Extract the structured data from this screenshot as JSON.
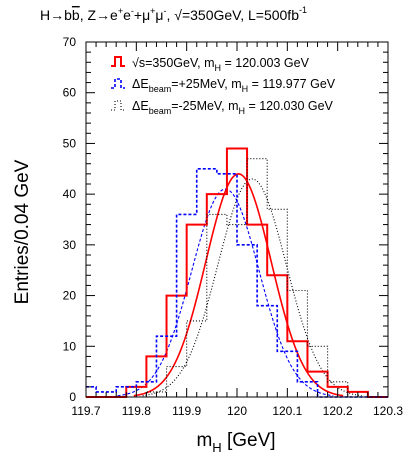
{
  "chart_data": {
    "type": "line",
    "title": {
      "pre": "H→b",
      "b": "b",
      "mid": ", Z→e",
      "plus1": "+",
      "e2": "e",
      "minus1": "-",
      "plus": "+μ",
      "plus2": "+",
      "mu2": "μ",
      "minus2": "-",
      "rest": ", √=350GeV, L=500fb",
      "sup": "-1"
    },
    "xlabel": {
      "main": "m",
      "sub": "H",
      "unit": " [GeV]"
    },
    "ylabel": "Entries/0.04 GeV",
    "xlim": [
      119.7,
      120.3
    ],
    "ylim": [
      0,
      70
    ],
    "x_ticks": [
      {
        "v": 119.7,
        "label": "119.7"
      },
      {
        "v": 119.8,
        "label": "119.8"
      },
      {
        "v": 119.9,
        "label": "119.9"
      },
      {
        "v": 120.0,
        "label": "120"
      },
      {
        "v": 120.1,
        "label": "120.1"
      },
      {
        "v": 120.2,
        "label": "120.2"
      },
      {
        "v": 120.3,
        "label": "120.3"
      }
    ],
    "y_ticks": [
      {
        "v": 0,
        "label": "0"
      },
      {
        "v": 10,
        "label": "10"
      },
      {
        "v": 20,
        "label": "20"
      },
      {
        "v": 30,
        "label": "30"
      },
      {
        "v": 40,
        "label": "40"
      },
      {
        "v": 50,
        "label": "50"
      },
      {
        "v": 60,
        "label": "60"
      },
      {
        "v": 70,
        "label": "70"
      }
    ],
    "series": [
      {
        "name": "√s=350GeV, m_H = 120.003 GeV",
        "legend": {
          "a": "√s=350GeV, m",
          "sub": "H",
          "b": " = 120.003 GeV"
        },
        "color": "#ff0000",
        "dash": "",
        "width": 2,
        "bins": [
          {
            "lo": 119.7,
            "hi": 119.78,
            "y": 0
          },
          {
            "lo": 119.78,
            "hi": 119.82,
            "y": 2
          },
          {
            "lo": 119.82,
            "hi": 119.86,
            "y": 8
          },
          {
            "lo": 119.86,
            "hi": 119.9,
            "y": 20
          },
          {
            "lo": 119.9,
            "hi": 119.94,
            "y": 34
          },
          {
            "lo": 119.94,
            "hi": 119.98,
            "y": 40
          },
          {
            "lo": 119.98,
            "hi": 120.02,
            "y": 49
          },
          {
            "lo": 120.02,
            "hi": 120.06,
            "y": 34
          },
          {
            "lo": 120.06,
            "hi": 120.1,
            "y": 24
          },
          {
            "lo": 120.1,
            "hi": 120.14,
            "y": 11
          },
          {
            "lo": 120.14,
            "hi": 120.18,
            "y": 5
          },
          {
            "lo": 120.18,
            "hi": 120.22,
            "y": 2
          },
          {
            "lo": 120.22,
            "hi": 120.26,
            "y": 1
          },
          {
            "lo": 120.26,
            "hi": 120.3,
            "y": 0
          }
        ],
        "fit": {
          "mean": 120.003,
          "sigma": 0.065,
          "amp": 44
        }
      },
      {
        "name": "ΔE_beam=+25MeV, m_H = 119.977 GeV",
        "legend": {
          "a": "ΔE",
          "sub1": "beam",
          "b": "=+25MeV, m",
          "sub2": "H",
          "c": " = 119.977 GeV"
        },
        "color": "#0000ff",
        "dash": "3,2",
        "width": 1.6,
        "bins": [
          {
            "lo": 119.7,
            "hi": 119.72,
            "y": 2
          },
          {
            "lo": 119.72,
            "hi": 119.76,
            "y": 1
          },
          {
            "lo": 119.76,
            "hi": 119.8,
            "y": 2
          },
          {
            "lo": 119.8,
            "hi": 119.84,
            "y": 3
          },
          {
            "lo": 119.84,
            "hi": 119.88,
            "y": 12
          },
          {
            "lo": 119.88,
            "hi": 119.92,
            "y": 36
          },
          {
            "lo": 119.92,
            "hi": 119.96,
            "y": 45
          },
          {
            "lo": 119.96,
            "hi": 120.0,
            "y": 44
          },
          {
            "lo": 120.0,
            "hi": 120.04,
            "y": 30
          },
          {
            "lo": 120.04,
            "hi": 120.08,
            "y": 18
          },
          {
            "lo": 120.08,
            "hi": 120.12,
            "y": 9
          },
          {
            "lo": 120.12,
            "hi": 120.16,
            "y": 3
          },
          {
            "lo": 120.16,
            "hi": 120.3,
            "y": 0
          }
        ],
        "fit": {
          "mean": 119.977,
          "sigma": 0.067,
          "amp": 41
        }
      },
      {
        "name": "ΔE_beam=-25MeV, m_H = 120.030 GeV",
        "legend": {
          "a": "ΔE",
          "sub1": "beam",
          "b": "=-25MeV, m",
          "sub2": "H",
          "c": " = 120.030 GeV"
        },
        "color": "#000000",
        "dash": "1,2",
        "width": 1.1,
        "bins": [
          {
            "lo": 119.7,
            "hi": 119.82,
            "y": 0
          },
          {
            "lo": 119.82,
            "hi": 119.86,
            "y": 1
          },
          {
            "lo": 119.86,
            "hi": 119.9,
            "y": 6
          },
          {
            "lo": 119.9,
            "hi": 119.94,
            "y": 15
          },
          {
            "lo": 119.94,
            "hi": 119.98,
            "y": 36
          },
          {
            "lo": 119.98,
            "hi": 120.02,
            "y": 34
          },
          {
            "lo": 120.02,
            "hi": 120.06,
            "y": 47
          },
          {
            "lo": 120.06,
            "hi": 120.1,
            "y": 37
          },
          {
            "lo": 120.1,
            "hi": 120.14,
            "y": 21
          },
          {
            "lo": 120.14,
            "hi": 120.18,
            "y": 10
          },
          {
            "lo": 120.18,
            "hi": 120.22,
            "y": 3
          },
          {
            "lo": 120.22,
            "hi": 120.3,
            "y": 0
          }
        ],
        "fit": {
          "mean": 120.03,
          "sigma": 0.068,
          "amp": 43
        }
      }
    ],
    "grid": false,
    "legend_position": "top-left"
  }
}
